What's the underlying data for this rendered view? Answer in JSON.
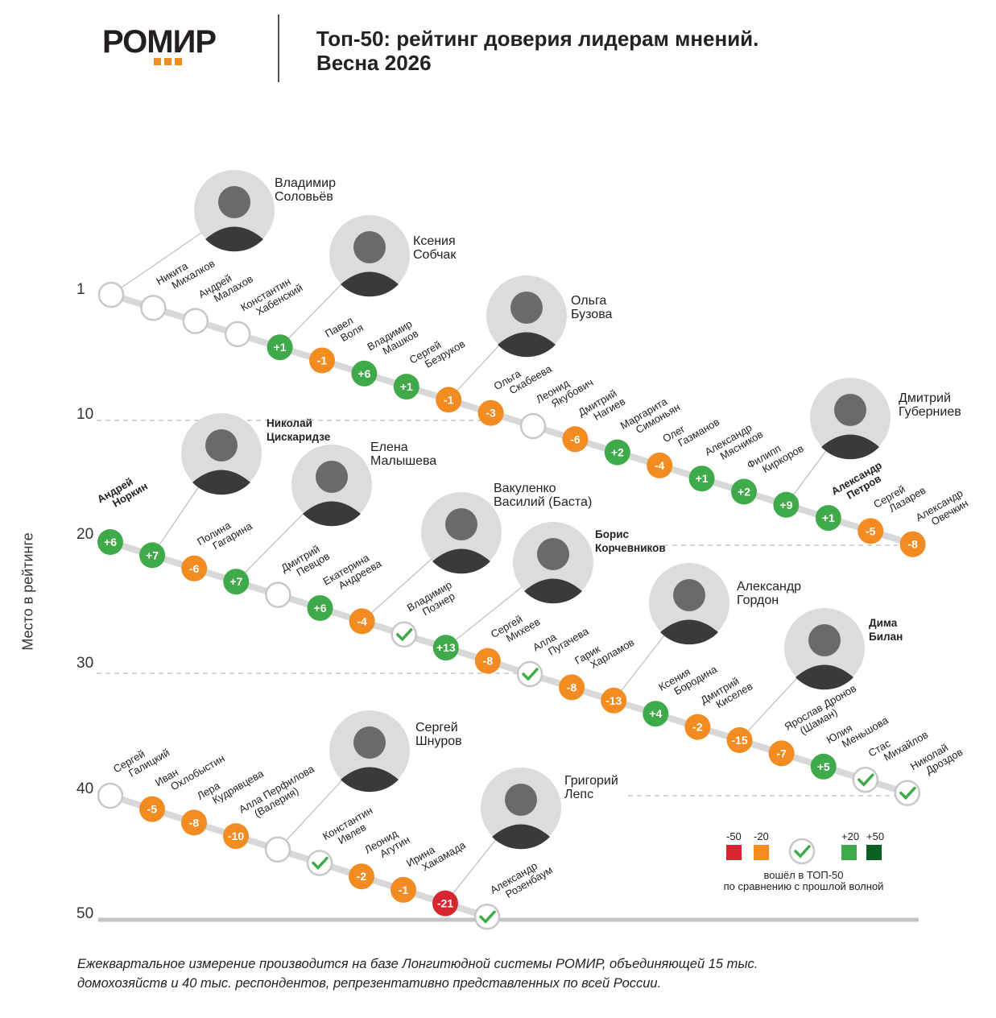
{
  "header": {
    "logo": "РОМИР",
    "title_line1": "Топ-50: рейтинг доверия лидерам мнений.",
    "title_line2": "Весна 2026"
  },
  "footer": {
    "line1": "Ежеквартальное измерение производится на базе Лонгитюдной системы РОМИР, объединяющей 15 тыс.",
    "line2": "домохозяйств и 40 тыс. респондентов, репрезентативно представленных по всей России."
  },
  "colors": {
    "minus50": "#d7262f",
    "minus20": "#f28b20",
    "plus20": "#3faa49",
    "plus50": "#0b6122",
    "track": "#d8d8d8",
    "ring": "#c8c8c8"
  },
  "legend": {
    "minus50": "-50",
    "minus20": "-20",
    "plus20": "+20",
    "plus50": "+50",
    "new_line1": "вошёл в ТОП-50",
    "new_line2": "по сравнению с прошлой волной"
  },
  "chart_data": {
    "type": "scatter",
    "title": "Топ-50: рейтинг доверия лидерам мнений. Весна 2026",
    "ylabel": "Место в рейтинге",
    "yticks": [
      "1",
      "10",
      "20",
      "30",
      "40",
      "50"
    ],
    "ylim": [
      1,
      50
    ],
    "items": [
      {
        "rank": 1,
        "name": [
          "Владимир",
          "Соловьёв"
        ],
        "change": null,
        "photo": true
      },
      {
        "rank": 2,
        "name": [
          "Никита",
          "Михалков"
        ],
        "change": null
      },
      {
        "rank": 3,
        "name": [
          "Андрей",
          "Малахов"
        ],
        "change": null
      },
      {
        "rank": 4,
        "name": [
          "Константин",
          "Хабенский"
        ],
        "change": null
      },
      {
        "rank": 5,
        "name": [
          "Ксения",
          "Собчак"
        ],
        "change": 1,
        "photo": true
      },
      {
        "rank": 6,
        "name": [
          "Павел",
          "Воля"
        ],
        "change": -1
      },
      {
        "rank": 7,
        "name": [
          "Владимир",
          "Машков"
        ],
        "change": 6
      },
      {
        "rank": 8,
        "name": [
          "Сергей",
          "Безруков"
        ],
        "change": 1
      },
      {
        "rank": 9,
        "name": [
          "Ольга",
          "Бузова"
        ],
        "change": -1,
        "photo": true
      },
      {
        "rank": 10,
        "name": [
          "Ольга",
          "Скабеева"
        ],
        "change": -3
      },
      {
        "rank": 11,
        "name": [
          "Леонид",
          "Якубович"
        ],
        "change": null
      },
      {
        "rank": 12,
        "name": [
          "Дмитрий",
          "Нагиев"
        ],
        "change": -6
      },
      {
        "rank": 13,
        "name": [
          "Маргарита",
          "Симоньян"
        ],
        "change": 2
      },
      {
        "rank": 14,
        "name": [
          "Олег",
          "Газманов"
        ],
        "change": -4
      },
      {
        "rank": 15,
        "name": [
          "Александр",
          "Мясников"
        ],
        "change": 1
      },
      {
        "rank": 16,
        "name": [
          "Филипп",
          "Киркоров"
        ],
        "change": 2
      },
      {
        "rank": 17,
        "name": [
          "Дмитрий",
          "Губерниев"
        ],
        "change": 9,
        "photo": true
      },
      {
        "rank": 18,
        "name": [
          "Александр",
          "Петров"
        ],
        "change": 1,
        "bold": true
      },
      {
        "rank": 19,
        "name": [
          "Сергей",
          "Лазарев"
        ],
        "change": -5
      },
      {
        "rank": 20,
        "name": [
          "Александр",
          "Овечкин"
        ],
        "change": -8
      },
      {
        "rank": 21,
        "name": [
          "Андрей",
          "Норкин"
        ],
        "change": 6,
        "bold": true
      },
      {
        "rank": 22,
        "name": [
          "Николай",
          "Цискаридзе"
        ],
        "change": 7,
        "photo": true
      },
      {
        "rank": 23,
        "name": [
          "Полина",
          "Гагарина"
        ],
        "change": -6
      },
      {
        "rank": 24,
        "name": [
          "Елена",
          "Малышева"
        ],
        "change": 7,
        "photo": true
      },
      {
        "rank": 25,
        "name": [
          "Дмитрий",
          "Певцов"
        ],
        "change": null
      },
      {
        "rank": 26,
        "name": [
          "Екатерина",
          "Андреева"
        ],
        "change": 6
      },
      {
        "rank": 27,
        "name": [
          "Вакуленко",
          "Василий (Баста)"
        ],
        "change": -4,
        "photo": true
      },
      {
        "rank": 28,
        "name": [
          "Владимир",
          "Познер"
        ],
        "change": "new"
      },
      {
        "rank": 29,
        "name": [
          "Борис",
          "Корчевников"
        ],
        "change": 13,
        "photo": true
      },
      {
        "rank": 30,
        "name": [
          "Сергей",
          "Михеев"
        ],
        "change": -8
      },
      {
        "rank": 31,
        "name": [
          "Алла",
          "Пугачева"
        ],
        "change": "new"
      },
      {
        "rank": 32,
        "name": [
          "Гарик",
          "Харламов"
        ],
        "change": -8
      },
      {
        "rank": 33,
        "name": [
          "Александр",
          "Гордон"
        ],
        "change": -13,
        "photo": true
      },
      {
        "rank": 34,
        "name": [
          "Ксения",
          "Бородина"
        ],
        "change": 4
      },
      {
        "rank": 35,
        "name": [
          "Дмитрий",
          "Киселев"
        ],
        "change": -2
      },
      {
        "rank": 36,
        "name": [
          "Дима",
          "Билан"
        ],
        "change": -15,
        "photo": true
      },
      {
        "rank": 37,
        "name": [
          "Ярослав Дронов",
          "(Шаман)"
        ],
        "change": -7
      },
      {
        "rank": 38,
        "name": [
          "Юлия",
          "Меньшова"
        ],
        "change": 5
      },
      {
        "rank": 39,
        "name": [
          "Стас",
          "Михайлов"
        ],
        "change": "new"
      },
      {
        "rank": 40,
        "name": [
          "Николай",
          "Дроздов"
        ],
        "change": "new"
      },
      {
        "rank": 41,
        "name": [
          "Сергей",
          "Галицкий"
        ],
        "change": null
      },
      {
        "rank": 42,
        "name": [
          "Иван",
          "Охлобыстин"
        ],
        "change": -5
      },
      {
        "rank": 43,
        "name": [
          "Лера",
          "Кудрявцева"
        ],
        "change": -8
      },
      {
        "rank": 44,
        "name": [
          "Алла Перфилова",
          "(Валерия)"
        ],
        "change": -10
      },
      {
        "rank": 45,
        "name": [
          "Сергей",
          "Шнуров"
        ],
        "change": null,
        "photo": true
      },
      {
        "rank": 46,
        "name": [
          "Константин",
          "Ивлев"
        ],
        "change": "new"
      },
      {
        "rank": 47,
        "name": [
          "Леонид",
          "Агутин"
        ],
        "change": -2
      },
      {
        "rank": 48,
        "name": [
          "Ирина",
          "Хакамада"
        ],
        "change": -1
      },
      {
        "rank": 49,
        "name": [
          "Григорий",
          "Лепс"
        ],
        "change": -21,
        "photo": true
      },
      {
        "rank": 50,
        "name": [
          "Александр",
          "Розенбаум"
        ],
        "change": "new"
      }
    ]
  }
}
